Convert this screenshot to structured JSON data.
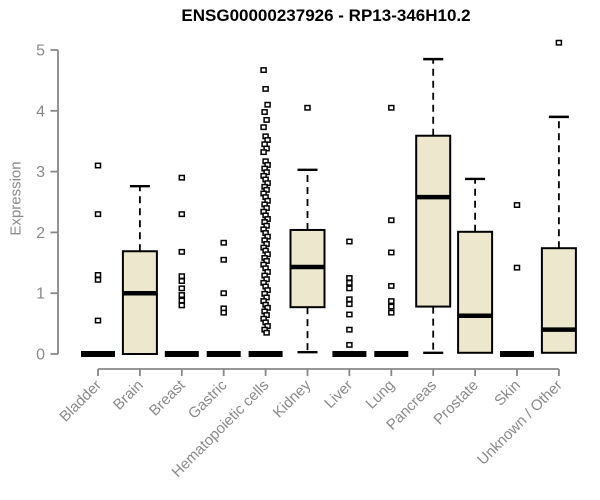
{
  "chart_data": {
    "type": "boxplot",
    "title": "ENSG00000237926 - RP13-346H10.2",
    "xlabel": "",
    "ylabel": "Expression",
    "ylim": [
      0,
      5
    ],
    "yticks": [
      "0",
      "1",
      "2",
      "3",
      "4",
      "5"
    ],
    "grid": false,
    "legend": null,
    "categories": [
      "Bladder",
      "Brain",
      "Breast",
      "Gastric",
      "Hematopoietic cells",
      "Kidney",
      "Liver",
      "Lung",
      "Pancreas",
      "Prostate",
      "Skin",
      "Unknown / Other"
    ],
    "series": [
      {
        "category": "Bladder",
        "min": 0,
        "q1": 0,
        "median": 0,
        "q3": 0,
        "max": 0,
        "outliers": [
          3.1,
          2.3,
          1.3,
          1.22,
          0.55
        ]
      },
      {
        "category": "Brain",
        "min": 0,
        "q1": 0,
        "median": 1.0,
        "q3": 1.69,
        "max": 2.76,
        "outliers": []
      },
      {
        "category": "Breast",
        "min": 0,
        "q1": 0,
        "median": 0,
        "q3": 0,
        "max": 0,
        "outliers": [
          2.9,
          2.3,
          1.68,
          1.28,
          1.2,
          1.08,
          0.97,
          0.88,
          0.8
        ]
      },
      {
        "category": "Gastric",
        "min": 0,
        "q1": 0,
        "median": 0,
        "q3": 0,
        "max": 0,
        "outliers": [
          1.83,
          1.55,
          1.0,
          0.75,
          0.68
        ]
      },
      {
        "category": "Hematopoietic cells",
        "min": 0,
        "q1": 0,
        "median": 0,
        "q3": 0,
        "max": 0,
        "outliers": [
          4.67,
          4.36,
          4.1,
          3.98,
          3.85,
          3.73,
          3.58,
          3.52,
          3.45,
          3.38,
          3.32,
          3.17,
          3.11,
          3.05,
          2.99,
          2.93,
          2.87,
          2.81,
          2.75,
          2.7,
          2.64,
          2.58,
          2.52,
          2.46,
          2.4,
          2.34,
          2.28,
          2.22,
          2.17,
          2.11,
          2.05,
          1.99,
          1.93,
          1.87,
          1.81,
          1.75,
          1.7,
          1.64,
          1.58,
          1.53,
          1.47,
          1.41,
          1.35,
          1.29,
          1.23,
          1.17,
          1.11,
          1.05,
          0.99,
          0.93,
          0.87,
          0.81,
          0.76,
          0.7,
          0.64,
          0.58,
          0.52,
          0.46,
          0.4,
          0.35
        ]
      },
      {
        "category": "Kidney",
        "min": 0.03,
        "q1": 0.77,
        "median": 1.43,
        "q3": 2.04,
        "max": 3.03,
        "outliers": [
          4.05
        ]
      },
      {
        "category": "Liver",
        "min": 0,
        "q1": 0,
        "median": 0,
        "q3": 0,
        "max": 0,
        "outliers": [
          1.85,
          1.25,
          1.17,
          1.08,
          0.9,
          0.82,
          0.65,
          0.4,
          0.15
        ]
      },
      {
        "category": "Lung",
        "min": 0,
        "q1": 0,
        "median": 0,
        "q3": 0,
        "max": 0,
        "outliers": [
          4.05,
          2.2,
          1.67,
          1.12,
          0.87,
          0.78,
          0.68
        ]
      },
      {
        "category": "Pancreas",
        "min": 0.02,
        "q1": 0.78,
        "median": 2.58,
        "q3": 3.59,
        "max": 4.85,
        "outliers": []
      },
      {
        "category": "Prostate",
        "min": 0.02,
        "q1": 0.02,
        "median": 0.63,
        "q3": 2.01,
        "max": 2.88,
        "outliers": []
      },
      {
        "category": "Skin",
        "min": 0,
        "q1": 0,
        "median": 0,
        "q3": 0,
        "max": 0,
        "outliers": [
          2.45,
          1.42
        ]
      },
      {
        "category": "Unknown / Other",
        "min": 0,
        "q1": 0.02,
        "median": 0.4,
        "q3": 1.74,
        "max": 3.9,
        "outliers": [
          5.12
        ]
      }
    ],
    "colors": {
      "box_fill": "#EDE8CD",
      "box_border": "#000000",
      "median": "#000000",
      "whisker": "#000000",
      "outlier_fill": "#ffffff",
      "axis_line": "#878787",
      "tick_label": "#8a8a8a",
      "title": "#000000",
      "background": "#ffffff"
    }
  }
}
